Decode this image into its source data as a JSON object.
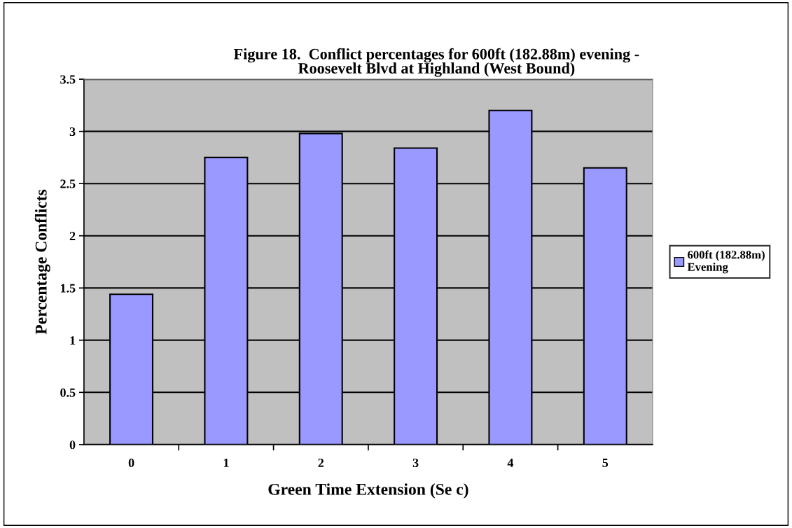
{
  "chart_data": {
    "type": "bar",
    "title": "Figure 18.  Conflict percentages for 600ft (182.88m) evening -\nRoosevelt Blvd at Highland (West Bound)",
    "xlabel": "Green Time Extension (Se c)",
    "ylabel": "Percentage Conflicts",
    "categories": [
      "0",
      "1",
      "2",
      "3",
      "4",
      "5"
    ],
    "series": [
      {
        "name": "600ft (182.88m)\nEvening",
        "color": "#9999ff",
        "values": [
          1.44,
          2.75,
          2.98,
          2.84,
          3.2,
          2.65
        ]
      }
    ],
    "ylim": [
      0,
      3.5
    ],
    "yticks": [
      0,
      0.5,
      1,
      1.5,
      2,
      2.5,
      3,
      3.5
    ],
    "grid": "y",
    "legend": "right"
  }
}
